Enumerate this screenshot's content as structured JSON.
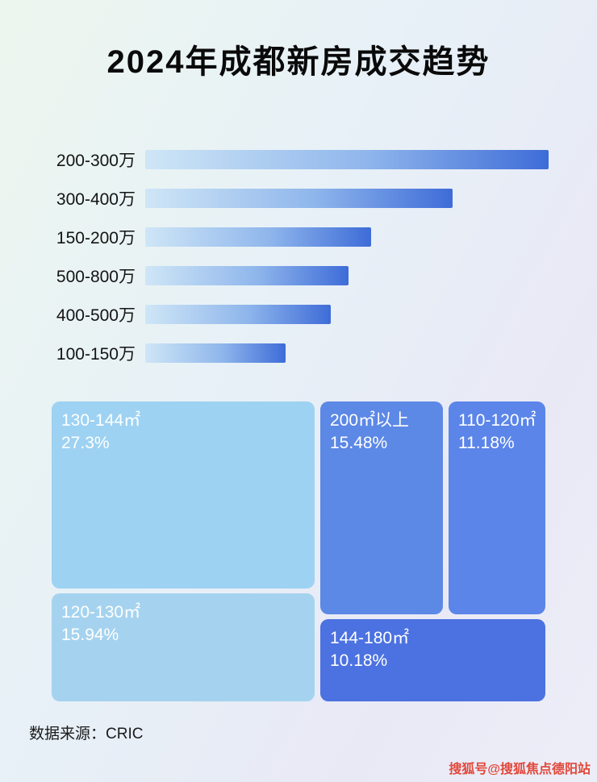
{
  "page": {
    "title": "2024年成都新房成交趋势",
    "source_note": "数据来源：CRIC",
    "watermark": "搜狐号@搜狐焦点德阳站"
  },
  "colors": {
    "bar_gradient_start": "#cfe6f6",
    "bar_gradient_end": "#3e6cd8",
    "treemap_light_blue": "#9dd2f2",
    "treemap_light_blue_2": "#a5d3ef",
    "treemap_mid_blue": "#5c88e6",
    "treemap_mid_blue_2": "#5b85e9",
    "treemap_dark_blue": "#4c72e1",
    "watermark_red": "#e2483a"
  },
  "chart_data": [
    {
      "type": "bar",
      "orientation": "horizontal",
      "title": "总价段成交（按条长排序，无数值标注）",
      "categories": [
        "200-300万",
        "300-400万",
        "150-200万",
        "500-800万",
        "400-500万",
        "100-150万"
      ],
      "values": [
        100,
        68,
        50,
        45,
        41,
        31
      ],
      "value_note": "relative bar lengths, percent of longest bar (no numeric labels shown)",
      "xlabel": "",
      "ylabel": "",
      "grid": false,
      "legend": false
    },
    {
      "type": "treemap",
      "title": "面积段成交占比",
      "items": [
        {
          "label": "130-144㎡",
          "value": 27.3,
          "value_label": "27.3%"
        },
        {
          "label": "200㎡以上",
          "value": 15.48,
          "value_label": "15.48%"
        },
        {
          "label": "110-120㎡",
          "value": 11.18,
          "value_label": "11.18%"
        },
        {
          "label": "120-130㎡",
          "value": 15.94,
          "value_label": "15.94%"
        },
        {
          "label": "144-180㎡",
          "value": 10.18,
          "value_label": "10.18%"
        }
      ]
    }
  ]
}
